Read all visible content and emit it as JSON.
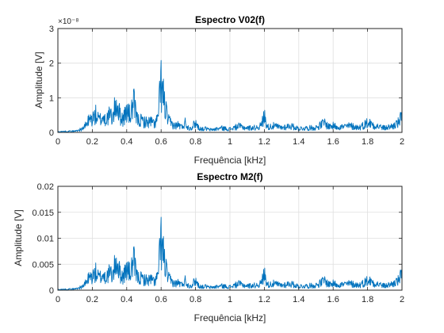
{
  "colors": {
    "series": "#0072bd"
  },
  "chart_data": [
    {
      "type": "line",
      "title": "Espectro V02(f)",
      "xlabel": "Frequência [kHz]",
      "ylabel": "Amplitude [V]",
      "exponent_label": "×10⁻⁸",
      "xlim": [
        0,
        2
      ],
      "ylim": [
        0,
        3
      ],
      "x_ticks": [
        "0",
        "0.2",
        "0.4",
        "0.6",
        "0.8",
        "1",
        "1.2",
        "1.4",
        "1.6",
        "1.8",
        "2"
      ],
      "y_ticks": [
        "0",
        "1",
        "2",
        "3"
      ],
      "grid": true,
      "series": [
        {
          "x": [
            0,
            0.05,
            0.1,
            0.14,
            0.16,
            0.18,
            0.2,
            0.22,
            0.24,
            0.26,
            0.28,
            0.3,
            0.32,
            0.34,
            0.36,
            0.38,
            0.4,
            0.42,
            0.44,
            0.46,
            0.48,
            0.5,
            0.52,
            0.54,
            0.56,
            0.58,
            0.6,
            0.62,
            0.64,
            0.66,
            0.68,
            0.7,
            0.72,
            0.74,
            0.76,
            0.78,
            0.8,
            0.82,
            0.84,
            0.86,
            0.88,
            0.9,
            0.95,
            1.0,
            1.05,
            1.1,
            1.15,
            1.18,
            1.2,
            1.22,
            1.25,
            1.3,
            1.35,
            1.4,
            1.45,
            1.5,
            1.53,
            1.55,
            1.57,
            1.6,
            1.65,
            1.7,
            1.75,
            1.78,
            1.8,
            1.82,
            1.85,
            1.9,
            1.95,
            1.98,
            2.0
          ],
          "y": [
            0.03,
            0.05,
            0.06,
            0.15,
            0.3,
            0.55,
            0.62,
            0.8,
            0.55,
            0.7,
            0.6,
            0.78,
            0.7,
            1.4,
            0.8,
            0.62,
            1.0,
            0.75,
            1.35,
            0.6,
            0.55,
            0.5,
            0.45,
            0.5,
            0.4,
            0.6,
            2.25,
            1.3,
            0.55,
            0.4,
            0.3,
            0.35,
            0.25,
            0.45,
            0.2,
            0.25,
            0.45,
            0.2,
            0.15,
            0.18,
            0.12,
            0.13,
            0.2,
            0.15,
            0.28,
            0.2,
            0.22,
            0.3,
            0.75,
            0.25,
            0.3,
            0.22,
            0.3,
            0.18,
            0.2,
            0.22,
            0.35,
            0.45,
            0.28,
            0.3,
            0.25,
            0.3,
            0.22,
            0.35,
            0.45,
            0.4,
            0.3,
            0.2,
            0.3,
            0.45,
            0.7
          ]
        }
      ]
    },
    {
      "type": "line",
      "title": "Espectro M2(f)",
      "xlabel": "Frequência [kHz]",
      "ylabel": "Amplitude [V]",
      "xlim": [
        0,
        2
      ],
      "ylim": [
        0,
        0.02
      ],
      "x_ticks": [
        "0",
        "0.2",
        "0.4",
        "0.6",
        "0.8",
        "1",
        "1.2",
        "1.4",
        "1.6",
        "1.8",
        "2"
      ],
      "y_ticks": [
        "0",
        "0.005",
        "0.01",
        "0.015",
        "0.02"
      ],
      "grid": true,
      "series": [
        {
          "x": [
            0,
            0.05,
            0.1,
            0.14,
            0.16,
            0.18,
            0.2,
            0.22,
            0.24,
            0.26,
            0.28,
            0.3,
            0.32,
            0.34,
            0.36,
            0.38,
            0.4,
            0.42,
            0.44,
            0.46,
            0.48,
            0.5,
            0.52,
            0.54,
            0.56,
            0.58,
            0.6,
            0.62,
            0.64,
            0.66,
            0.68,
            0.7,
            0.72,
            0.74,
            0.76,
            0.78,
            0.8,
            0.82,
            0.84,
            0.86,
            0.88,
            0.9,
            0.95,
            1.0,
            1.05,
            1.1,
            1.15,
            1.18,
            1.2,
            1.22,
            1.25,
            1.3,
            1.35,
            1.4,
            1.45,
            1.5,
            1.53,
            1.55,
            1.57,
            1.6,
            1.65,
            1.7,
            1.75,
            1.78,
            1.8,
            1.82,
            1.85,
            1.9,
            1.95,
            1.98,
            2.0
          ],
          "y": [
            0.0002,
            0.0003,
            0.0004,
            0.001,
            0.002,
            0.0037,
            0.0041,
            0.0053,
            0.0037,
            0.0047,
            0.004,
            0.0052,
            0.0047,
            0.0093,
            0.0053,
            0.0041,
            0.0067,
            0.005,
            0.009,
            0.004,
            0.0037,
            0.0033,
            0.003,
            0.0033,
            0.0027,
            0.004,
            0.0152,
            0.0087,
            0.0037,
            0.0027,
            0.002,
            0.0023,
            0.0017,
            0.003,
            0.0013,
            0.0017,
            0.003,
            0.0013,
            0.001,
            0.0012,
            0.0008,
            0.0009,
            0.0013,
            0.001,
            0.0019,
            0.0013,
            0.0015,
            0.002,
            0.005,
            0.0017,
            0.002,
            0.0015,
            0.002,
            0.0012,
            0.0013,
            0.0015,
            0.0023,
            0.003,
            0.0019,
            0.002,
            0.0017,
            0.002,
            0.0015,
            0.0023,
            0.003,
            0.0027,
            0.002,
            0.0013,
            0.002,
            0.003,
            0.0047
          ]
        }
      ]
    }
  ]
}
